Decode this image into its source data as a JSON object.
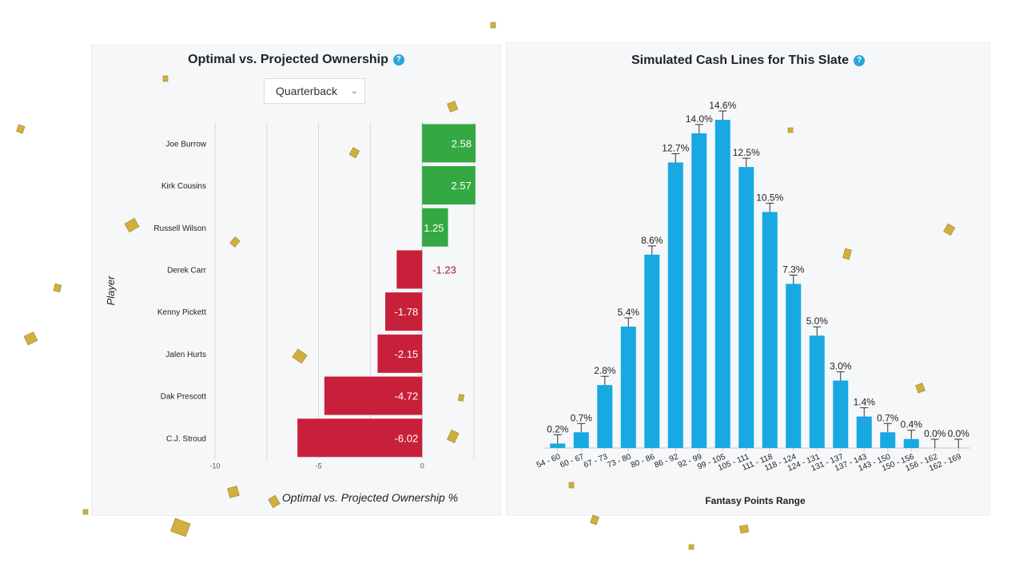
{
  "left_panel": {
    "title": "Optimal vs. Projected Ownership",
    "help_icon": "question-circle-icon",
    "dropdown": {
      "selected": "Quarterback"
    }
  },
  "right_panel": {
    "title": "Simulated Cash Lines for This Slate",
    "help_icon": "question-circle-icon"
  },
  "chart_data": [
    {
      "type": "bar",
      "orientation": "horizontal",
      "title": "Optimal vs. Projected Ownership",
      "ylabel": "Player",
      "xlabel": "Optimal vs. Projected Ownership %",
      "categories": [
        "Joe Burrow",
        "Kirk Cousins",
        "Russell Wilson",
        "Derek Carr",
        "Kenny Pickett",
        "Jalen Hurts",
        "Dak Prescott",
        "C.J. Stroud"
      ],
      "values": [
        2.58,
        2.57,
        1.25,
        -1.23,
        -1.78,
        -2.15,
        -4.72,
        -6.02
      ],
      "value_labels": [
        "2.58",
        "2.57",
        "1.25",
        "-1.23",
        "-1.78",
        "-2.15",
        "-4.72",
        "-6.02"
      ],
      "xticks": [
        -10,
        -5,
        0
      ],
      "xtick_labels": [
        "-10",
        "-5",
        "0"
      ],
      "xlim": [
        -10,
        2.5
      ],
      "colors": {
        "positive": "#34a843",
        "negative": "#c8203a",
        "negative_label_outside": "#a11d2c"
      },
      "grid": true
    },
    {
      "type": "bar",
      "title": "Simulated Cash Lines for This Slate",
      "xlabel": "Fantasy Points Range",
      "ylabel": "",
      "categories": [
        "54 - 60",
        "60 - 67",
        "67 - 73",
        "73 - 80",
        "80 - 86",
        "86 - 92",
        "92 - 99",
        "99 - 105",
        "105 - 111",
        "111 - 118",
        "118 - 124",
        "124 - 131",
        "131 - 137",
        "137 - 143",
        "143 - 150",
        "150 - 156",
        "156 - 162",
        "162 - 169"
      ],
      "values": [
        0.2,
        0.7,
        2.8,
        5.4,
        8.6,
        12.7,
        14.0,
        14.6,
        12.5,
        10.5,
        7.3,
        5.0,
        3.0,
        1.4,
        0.7,
        0.4,
        0.0,
        0.0
      ],
      "value_labels": [
        "0.2%",
        "0.7%",
        "2.8%",
        "5.4%",
        "8.6%",
        "12.7%",
        "14.0%",
        "14.6%",
        "12.5%",
        "10.5%",
        "7.3%",
        "5.0%",
        "3.0%",
        "1.4%",
        "0.7%",
        "0.4%",
        "0.0%",
        "0.0%"
      ],
      "ylim": [
        0,
        14.6
      ],
      "colors": {
        "bar": "#18a8e2"
      },
      "error_bars": true,
      "grid": false
    }
  ]
}
